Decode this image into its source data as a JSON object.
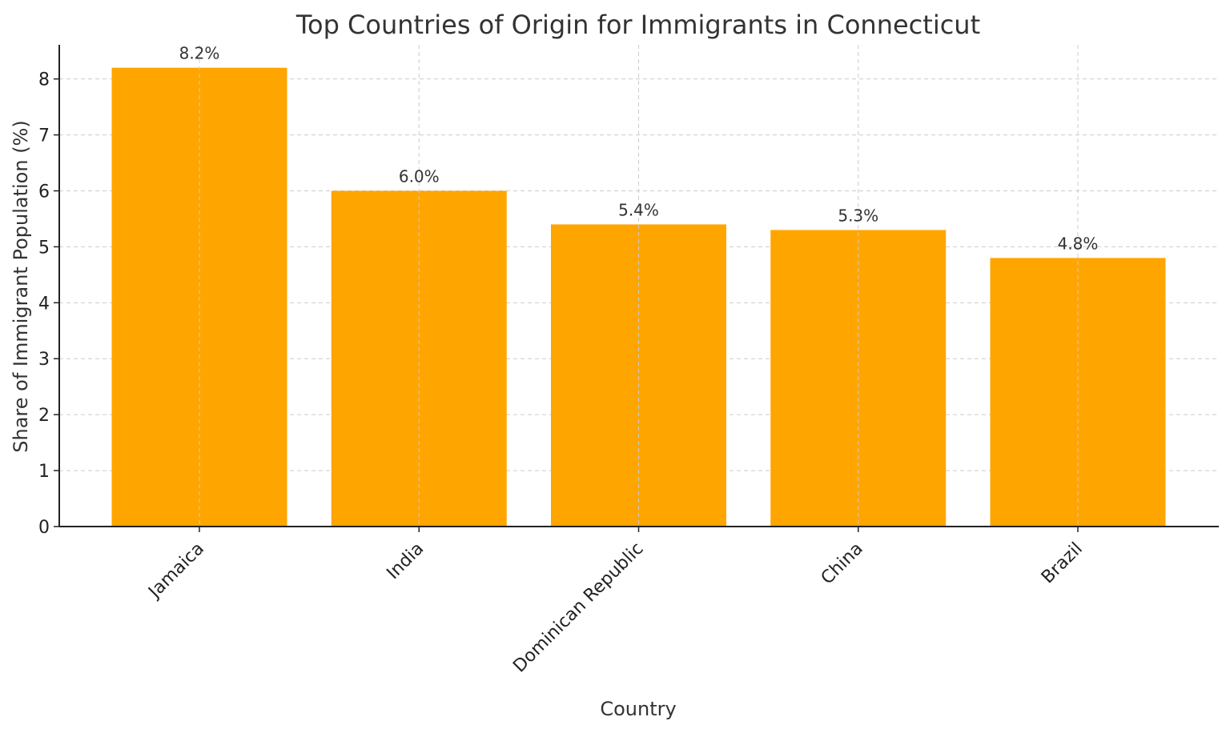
{
  "chart_data": {
    "type": "bar",
    "title": "Top Countries of Origin for Immigrants in Connecticut",
    "xlabel": "Country",
    "ylabel": "Share of Immigrant Population (%)",
    "categories": [
      "Jamaica",
      "India",
      "Dominican Republic",
      "China",
      "Brazil"
    ],
    "values": [
      8.2,
      6.0,
      5.4,
      5.3,
      4.8
    ],
    "data_labels": [
      "8.2%",
      "6.0%",
      "5.4%",
      "5.3%",
      "4.8%"
    ],
    "yticks": [
      "0",
      "1",
      "2",
      "3",
      "4",
      "5",
      "6",
      "7",
      "8"
    ],
    "ylim": [
      0,
      8.61
    ],
    "grid": true,
    "bar_color": "#FFA500"
  }
}
